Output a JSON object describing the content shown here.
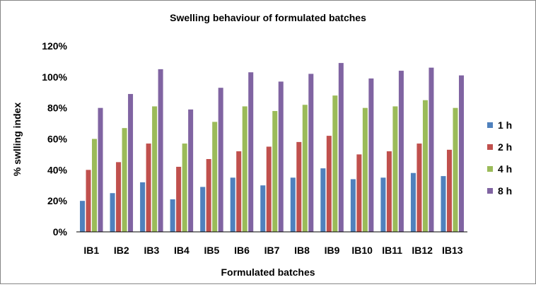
{
  "chart_data": {
    "type": "bar",
    "title": "Swelling behaviour  of formulated  batches",
    "xlabel": "Formulated  batches",
    "ylabel": "% swlling index",
    "ylim": [
      0,
      120
    ],
    "ytick_step": 20,
    "ytick_suffix": "%",
    "grid": false,
    "legend_position": "right",
    "categories": [
      "IB1",
      "IB2",
      "IB3",
      "IB4",
      "IB5",
      "IB6",
      "IB7",
      "IB8",
      "IB9",
      "IB10",
      "IB11",
      "IB12",
      "IB13"
    ],
    "series": [
      {
        "name": "1 h",
        "color": "#4F81BD",
        "values": [
          20,
          25,
          32,
          21,
          29,
          35,
          30,
          35,
          41,
          34,
          35,
          38,
          36
        ]
      },
      {
        "name": "2 h",
        "color": "#C0504D",
        "values": [
          40,
          45,
          57,
          42,
          47,
          52,
          55,
          58,
          62,
          50,
          52,
          57,
          53
        ]
      },
      {
        "name": "4 h",
        "color": "#9BBB59",
        "values": [
          60,
          67,
          81,
          57,
          71,
          81,
          78,
          82,
          88,
          80,
          81,
          85,
          80
        ]
      },
      {
        "name": "8 h",
        "color": "#8064A2",
        "values": [
          80,
          89,
          105,
          79,
          93,
          103,
          97,
          102,
          109,
          99,
          104,
          106,
          101
        ]
      }
    ]
  }
}
